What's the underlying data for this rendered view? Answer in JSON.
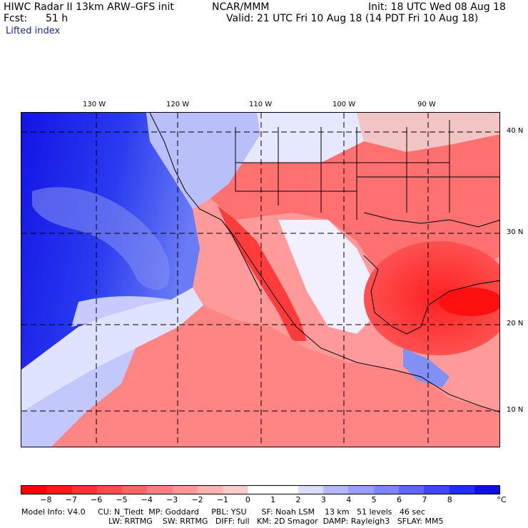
{
  "header": {
    "title": "HIWC Radar II 13km ARW–GFS init",
    "org": "NCAR/MMM",
    "init": "Init: 18 UTC Wed 08 Aug 18",
    "fcst_label": "Fcst:",
    "fcst_value": "51 h",
    "valid": "Valid: 21 UTC Fri 10 Aug 18 (14 PDT Fri 10 Aug 18)",
    "field": "Lifted index"
  },
  "map": {
    "lon_labels": [
      "130 W",
      "120 W",
      "110 W",
      "100 W",
      "90 W"
    ],
    "lat_labels": [
      "40 N",
      "30 N",
      "20 N",
      "10 N"
    ],
    "gridline_color": "#000000",
    "ocean_color": "#1a1ae6",
    "land_color": "#ff8080"
  },
  "colorbar": {
    "ticks": [
      "−8",
      "−7",
      "−6",
      "−5",
      "−4",
      "−3",
      "−2",
      "−1",
      "0",
      "1",
      "2",
      "3",
      "4",
      "5",
      "6",
      "7",
      "8"
    ],
    "unit": "°C",
    "colors": [
      "#ff0000",
      "#ff1a1a",
      "#ff3333",
      "#ff4d4d",
      "#ff6666",
      "#ff8080",
      "#ff9999",
      "#ffb3b3",
      "#ffcccc",
      "#ffffff",
      "#ffffff",
      "#d9dcff",
      "#b3b8ff",
      "#9a9fff",
      "#8086ff",
      "#6066ff",
      "#4048ff",
      "#2030f0",
      "#1010e0"
    ]
  },
  "footer": {
    "line1": "Model Info: V4.0     CU: N_Tiedt  MP: Goddard     PBL: YSU      SF: Noah LSM    13 km   51 levels   46 sec",
    "line2": "LW: RRTMG    SW: RRTMG   DIFF: full   KM: 2D Smagor  DAMP: Rayleigh3   SFLAY: MM5"
  }
}
